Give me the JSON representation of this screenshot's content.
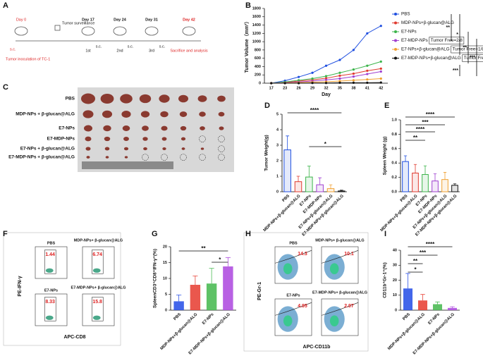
{
  "panel_labels": [
    "A",
    "B",
    "C",
    "D",
    "E",
    "F",
    "G",
    "H",
    "I"
  ],
  "timeline": {
    "start_day": "Day 0",
    "surveillance": "Tumor surveillance",
    "inoculation": "Tumor inoculation of TC-1",
    "start_route": "s.c.",
    "days": [
      "Day 17",
      "Day 24",
      "Day 31",
      "Day 42"
    ],
    "routes": [
      "s.c.",
      "s.c.",
      "s.c."
    ],
    "doses": [
      "1st",
      "2nd",
      "3rd"
    ],
    "end": "Sacrifice and analysis"
  },
  "tumor_photo": {
    "groups": [
      "PBS",
      "MDP-NPs + β-glucan@ALG",
      "E7-NPs",
      "E7-MDP-NPs",
      "E7-NPs + β-glucan@ALG",
      "E7-MDP-NPs + β-glucan@ALG"
    ]
  },
  "flow_f": {
    "y_axis": "PE-IFN-γ",
    "x_axis": "APC-CD8",
    "plots": [
      {
        "label": "PBS",
        "value": "1.44"
      },
      {
        "label": "MDP-NPs+ β-glucan@ALG",
        "value": "6.74"
      },
      {
        "label": "E7-NPs",
        "value": "8.33"
      },
      {
        "label": "E7-MDP-NPs+ β-glucan@ALG",
        "value": "15.8"
      }
    ]
  },
  "flow_h": {
    "y_axis": "PE-Gr-1",
    "x_axis": "APC-CD11b",
    "plots": [
      {
        "label": "PBS",
        "value": "14.3"
      },
      {
        "label": "MDP-NPs+ β-glucan@ALG",
        "value": "10.1"
      },
      {
        "label": "E7-NPs",
        "value": "4.95"
      },
      {
        "label": "E7-MDP-NPs+ β-glucan@ALG",
        "value": "2.97"
      }
    ]
  },
  "chart_data": [
    {
      "type": "line",
      "x_label": "Day",
      "y_label": "Tumor Volume（mm³）",
      "categories": [
        "17",
        "23",
        "26",
        "29",
        "32",
        "35",
        "38",
        "41",
        "42"
      ],
      "ylim": [
        0,
        1800
      ],
      "yticks": [
        0,
        200,
        400,
        600,
        800,
        1000,
        1200,
        1400,
        1600,
        1800
      ],
      "series": [
        {
          "name": "PBS",
          "color": "#1f4fe0",
          "values": [
            0,
            60,
            150,
            250,
            420,
            560,
            800,
            1200,
            1380
          ]
        },
        {
          "name": "MDP-NPs+β-glucan@ALG",
          "color": "#e03a2f",
          "values": [
            0,
            20,
            50,
            80,
            120,
            180,
            230,
            300,
            350
          ]
        },
        {
          "name": "E7-NPs",
          "color": "#3cb44b",
          "values": [
            0,
            30,
            70,
            110,
            170,
            250,
            330,
            420,
            520
          ]
        },
        {
          "name": "E7-MDP-NPs",
          "color": "#a040d0",
          "values": [
            0,
            10,
            30,
            50,
            80,
            110,
            160,
            220,
            280
          ]
        },
        {
          "name": "E7-NPs+β-glucan@ALG",
          "color": "#f0a030",
          "values": [
            0,
            5,
            15,
            25,
            35,
            50,
            70,
            90,
            110
          ]
        },
        {
          "name": "E7-MDP-NPs+β-glucan@ALG",
          "color": "#111111",
          "values": [
            0,
            0,
            0,
            5,
            5,
            10,
            10,
            10,
            15
          ]
        }
      ],
      "annotations": [
        "Tumor Free=2/8",
        "Tumor Free=1/8",
        "Tumor Free=5/8"
      ],
      "significance": [
        "**",
        "*",
        "**",
        "***",
        "***"
      ]
    },
    {
      "type": "bar",
      "y_label": "Tumor Weight(g)",
      "categories": [
        "PBS",
        "MDP-NPs+β-glucan@ALG",
        "E7-NPs",
        "E7-MDP-NPs",
        "E7-NPs+β-glucan@ALG",
        "E7-MDP-NPs+β-glucan@ALG"
      ],
      "values": [
        2.7,
        0.65,
        0.95,
        0.45,
        0.2,
        0.05
      ],
      "errors": [
        0.9,
        0.35,
        0.7,
        0.45,
        0.25,
        0.05
      ],
      "colors": [
        "#1f4fe0",
        "#e03a2f",
        "#3cb44b",
        "#a040d0",
        "#f0a030",
        "#111111"
      ],
      "ylim": [
        0,
        5
      ],
      "yticks": [
        0,
        1,
        2,
        3,
        4,
        5
      ],
      "significance": [
        "****",
        "*"
      ]
    },
    {
      "type": "bar",
      "y_label": "Spleen Weight (g)",
      "categories": [
        "PBS",
        "MDP-NPs+β-glucan@ALG",
        "E7-NPs",
        "E7-MDP-NPs",
        "E7-NPs+β-glucan@ALG",
        "E7-MDP-NPs+β-glucan@ALG"
      ],
      "values": [
        0.42,
        0.26,
        0.24,
        0.15,
        0.17,
        0.09
      ],
      "errors": [
        0.08,
        0.12,
        0.12,
        0.1,
        0.1,
        0.02
      ],
      "colors": [
        "#1f4fe0",
        "#e03a2f",
        "#3cb44b",
        "#a040d0",
        "#f0a030",
        "#111111"
      ],
      "ylim": [
        0,
        1
      ],
      "yticks": [
        {
          "value": 0,
          "label": "0.0"
        },
        0.2,
        0.4,
        0.6,
        0.8,
        {
          "value": 1,
          "label": "1.0"
        }
      ],
      "significance": [
        "****",
        "***",
        "****",
        "**"
      ]
    },
    {
      "type": "bar",
      "y_label": "SpleenCD3⁺CD8⁺IFN-γ⁺(%)",
      "categories": [
        "PBS",
        "MDP-NPs+β-glucan@ALG",
        "E7-NPs",
        "E7-MDP-NPs+β-glucan@ALG"
      ],
      "values": [
        2.8,
        8,
        8.4,
        13.8
      ],
      "errors": [
        2,
        2.8,
        4.8,
        2.8
      ],
      "colors": [
        "#2f55e8",
        "#e8453a",
        "#4cbb55",
        "#b050e0"
      ],
      "ylim": [
        0,
        20
      ],
      "yticks": [
        0,
        5,
        10,
        15,
        20
      ],
      "significance": [
        "**",
        "*"
      ]
    },
    {
      "type": "bar",
      "y_label": "CD11b⁺Gr-1⁺(%)",
      "categories": [
        "PBS",
        "MDP-NPs+β-glucan@ALG",
        "E7-NPs",
        "E7-MDP-NPs+β-glucan@ALG"
      ],
      "values": [
        14.5,
        6.5,
        4,
        1.5
      ],
      "errors": [
        10,
        4,
        1.5,
        0.8
      ],
      "colors": [
        "#2f55e8",
        "#e8453a",
        "#4cbb55",
        "#b050e0"
      ],
      "ylim": [
        0,
        40
      ],
      "yticks": [
        0,
        10,
        20,
        30,
        40
      ],
      "significance": [
        "****",
        "***",
        "**",
        "*"
      ]
    }
  ]
}
